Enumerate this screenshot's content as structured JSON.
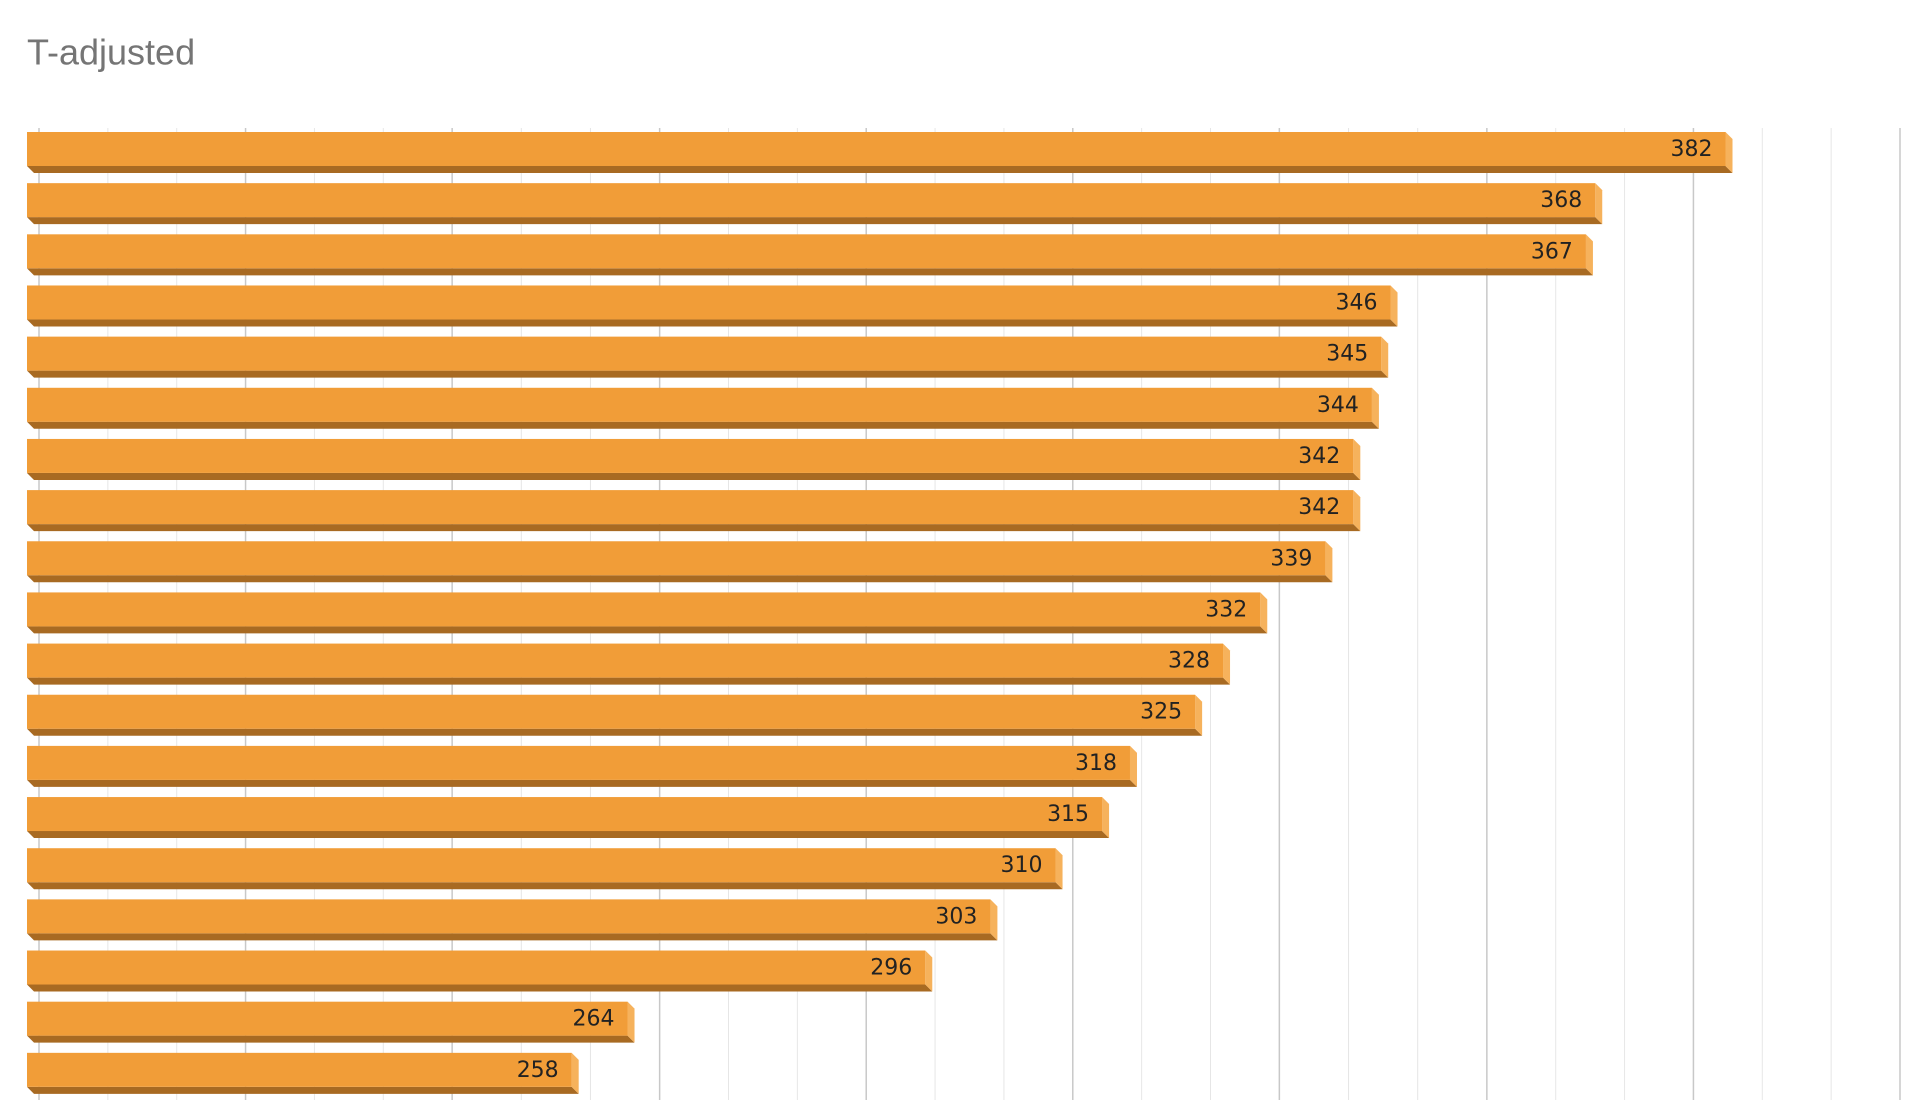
{
  "chart_data": {
    "type": "bar",
    "orientation": "horizontal",
    "title": "T-adjusted",
    "categories": [
      null,
      null,
      null,
      null,
      null,
      null,
      null,
      null,
      null,
      null,
      null,
      null,
      null,
      null,
      null,
      null,
      null,
      null,
      null
    ],
    "values": [
      382,
      368,
      367,
      346,
      345,
      344,
      342,
      342,
      339,
      332,
      328,
      325,
      318,
      315,
      310,
      303,
      296,
      264,
      258
    ],
    "color": "#f19d38",
    "xlim": [
      200,
      400
    ],
    "xticks": [
      200,
      222.2,
      244.4,
      266.7,
      288.9,
      311.1,
      333.3,
      355.6,
      377.8,
      400
    ],
    "grid": true
  }
}
